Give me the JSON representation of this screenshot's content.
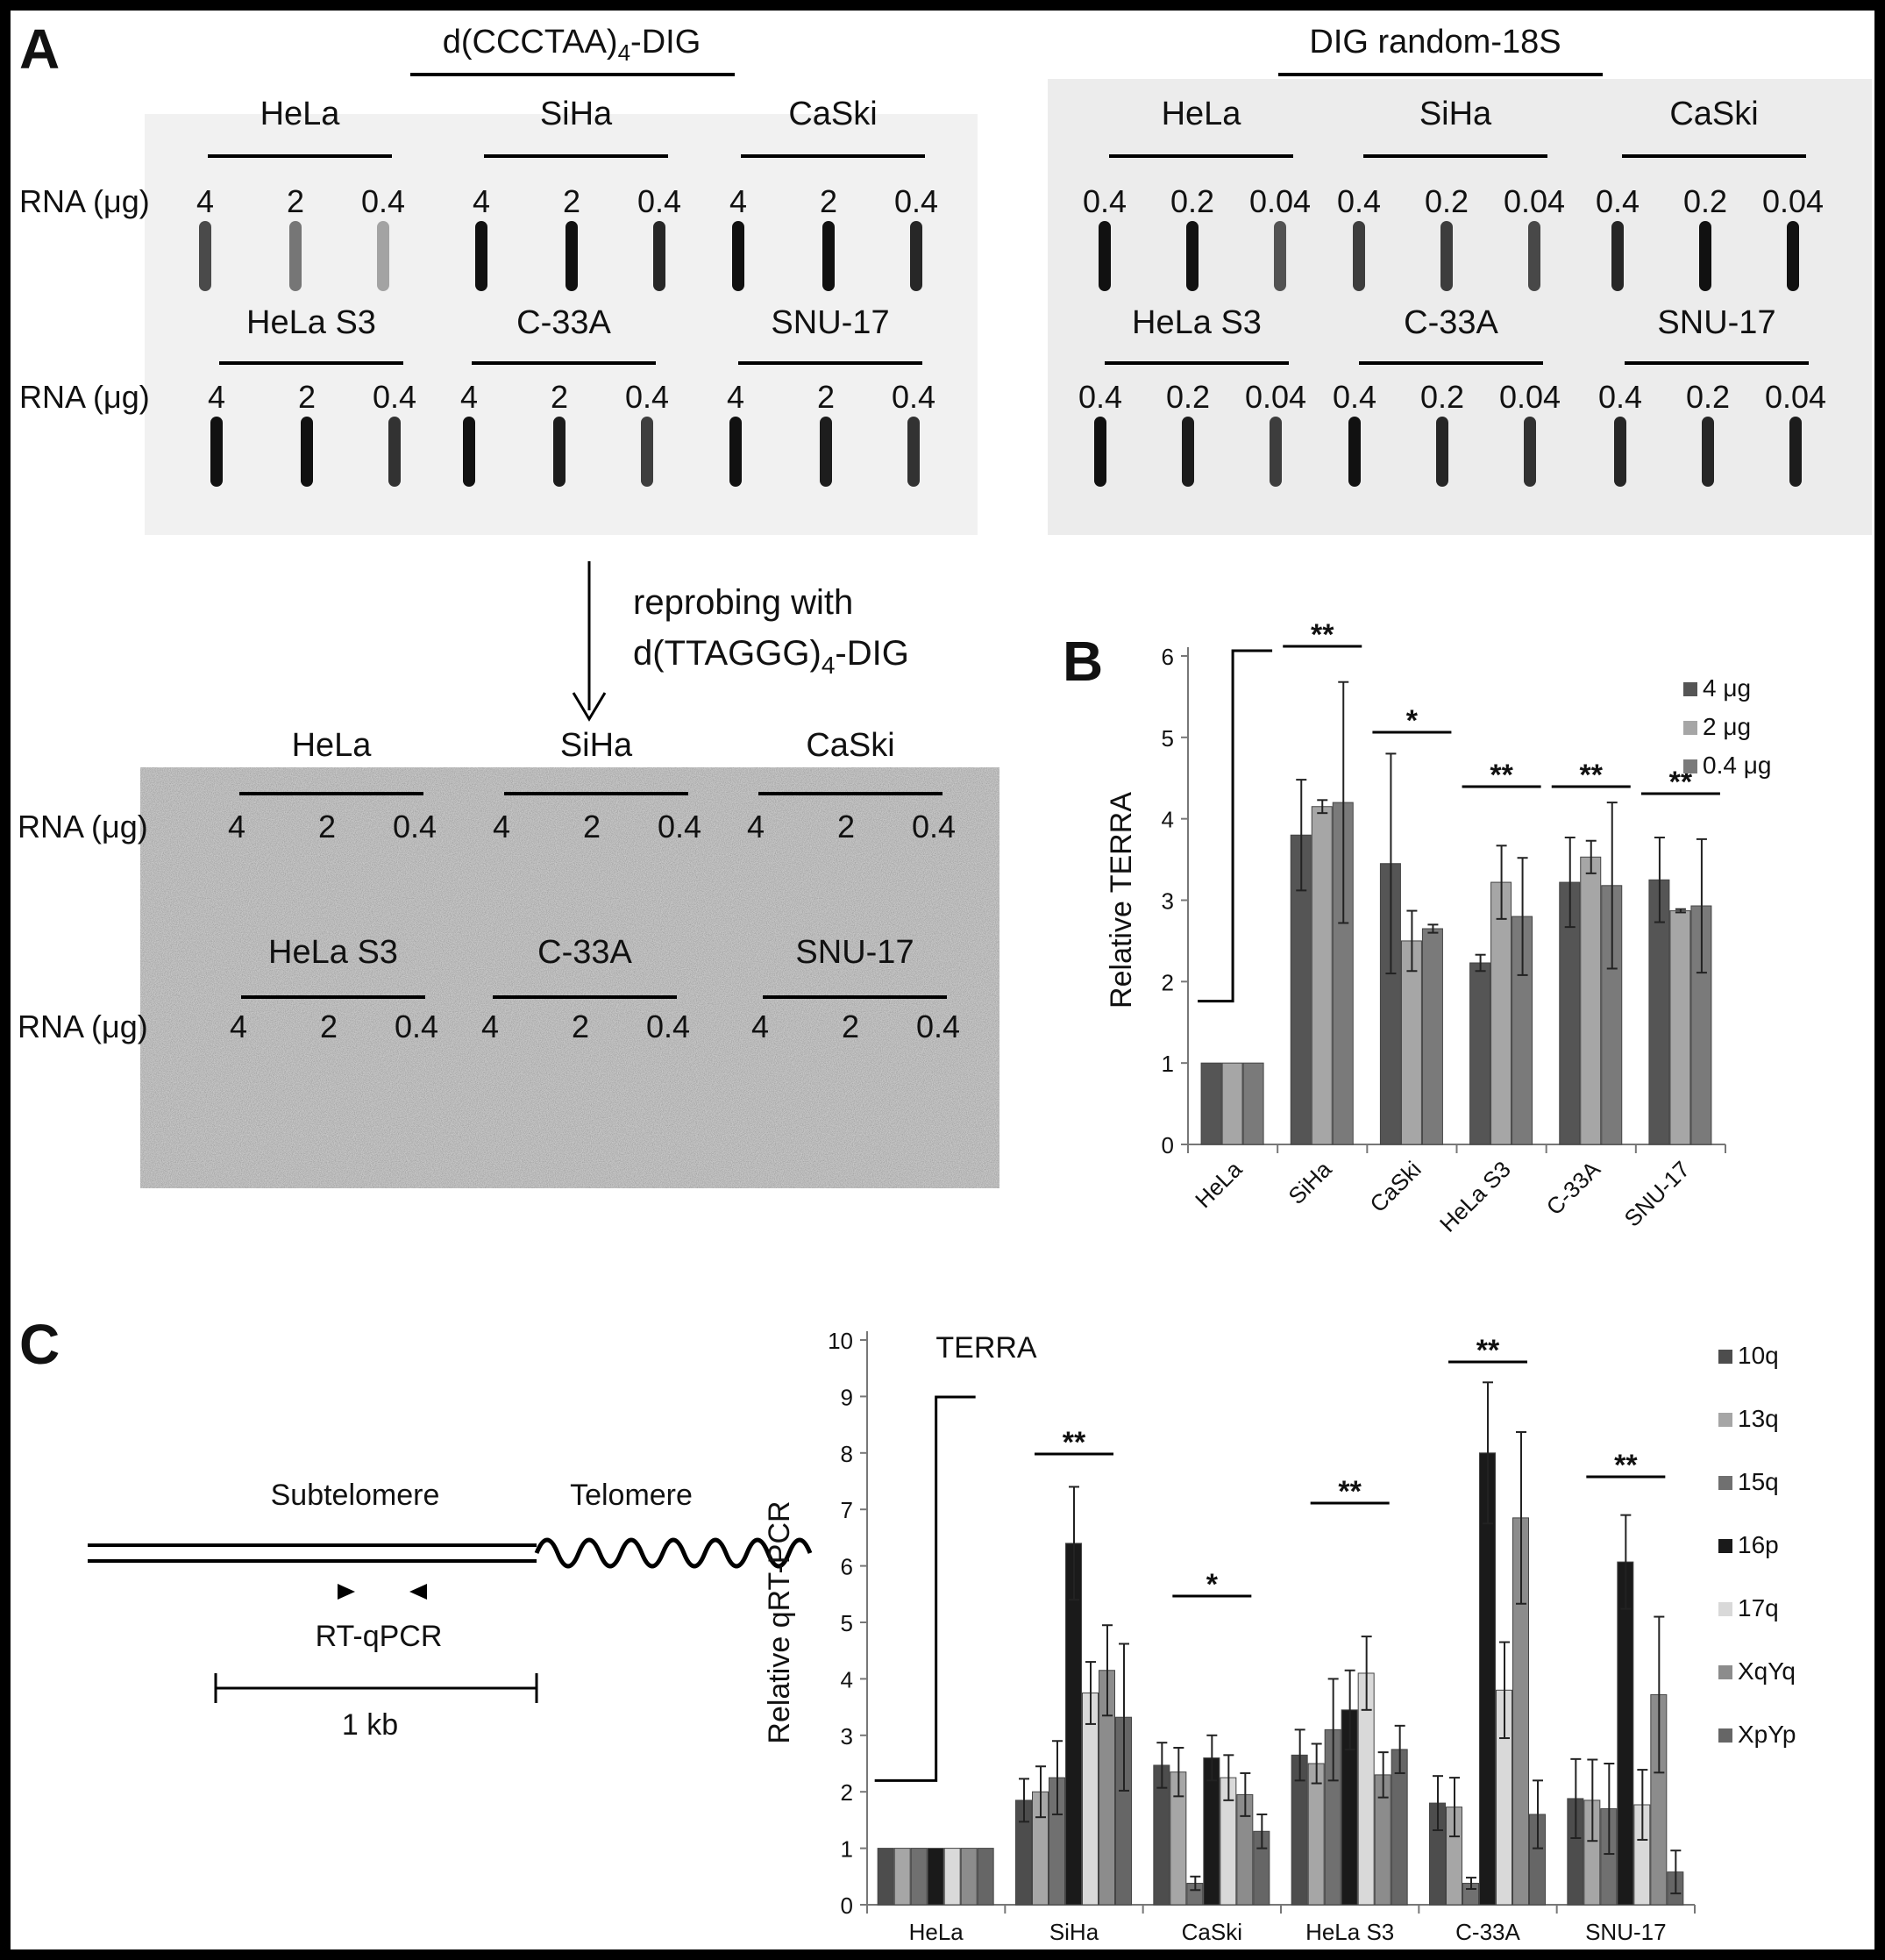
{
  "panel_a": {
    "letter": "A",
    "probe_left_prefix": "d(CCCTAA)",
    "probe_left_sub": "4",
    "probe_left_suffix": "-DIG",
    "probe_right": "DIG random-18S",
    "rna_label": "RNA (μg)",
    "groups_row1": [
      "HeLa",
      "SiHa",
      "CaSki"
    ],
    "groups_row2": [
      "HeLa S3",
      "C-33A",
      "SNU-17"
    ],
    "amounts_left": [
      "4",
      "2",
      "0.4"
    ],
    "amounts_right": [
      "0.4",
      "0.2",
      "0.04"
    ],
    "reprobe_line1": "reprobing with",
    "reprobe_line2_prefix": "d(TTAGGG)",
    "reprobe_line2_sub": "4",
    "reprobe_line2_suffix": "-DIG"
  },
  "panel_c_diagram": {
    "letter": "C",
    "subtelomere": "Subtelomere",
    "telomere": "Telomere",
    "primer_label": "RT-qPCR",
    "scale_label": "1 kb"
  },
  "chart_data": [
    {
      "type": "bar",
      "panel": "B",
      "title": "",
      "xlabel": "",
      "ylabel": "Relative TERRA",
      "ylim": [
        0,
        6
      ],
      "yticks": [
        0,
        1,
        2,
        3,
        4,
        5,
        6
      ],
      "categories": [
        "HeLa",
        "SiHa",
        "CaSki",
        "HeLa S3",
        "C-33A",
        "SNU-17"
      ],
      "legend_position": "top-right",
      "series": [
        {
          "name": "4 μg",
          "color": "#555555",
          "values": [
            1.0,
            3.8,
            3.45,
            2.23,
            3.22,
            3.25
          ],
          "errors": [
            0,
            0.68,
            1.35,
            0.1,
            0.55,
            0.52
          ]
        },
        {
          "name": "2 μg",
          "color": "#a6a6a6",
          "values": [
            1.0,
            4.15,
            2.5,
            3.22,
            3.53,
            2.87
          ],
          "errors": [
            0,
            0.08,
            0.37,
            0.45,
            0.2,
            0.02
          ]
        },
        {
          "name": "0.4 μg",
          "color": "#7a7a7a",
          "values": [
            1.0,
            4.2,
            2.65,
            2.8,
            3.18,
            2.93
          ],
          "errors": [
            0,
            1.48,
            0.05,
            0.72,
            1.02,
            0.82
          ]
        }
      ],
      "significance": [
        "",
        "**",
        "*",
        "**",
        "**",
        "**"
      ]
    },
    {
      "type": "bar",
      "panel": "C",
      "title": "TERRA",
      "xlabel": "",
      "ylabel": "Relative qRT-PCR",
      "ylim": [
        0,
        10
      ],
      "yticks": [
        0,
        1,
        2,
        3,
        4,
        5,
        6,
        7,
        8,
        9,
        10
      ],
      "categories": [
        "HeLa",
        "SiHa",
        "CaSki",
        "HeLa S3",
        "C-33A",
        "SNU-17"
      ],
      "legend_position": "right",
      "series": [
        {
          "name": "10q",
          "color": "#4d4d4d",
          "values": [
            1,
            1.85,
            2.47,
            2.65,
            1.8,
            1.88
          ],
          "errors": [
            0,
            0.38,
            0.4,
            0.45,
            0.48,
            0.7
          ]
        },
        {
          "name": "13q",
          "color": "#a6a6a6",
          "values": [
            1,
            2.0,
            2.35,
            2.5,
            1.73,
            1.85
          ],
          "errors": [
            0,
            0.45,
            0.43,
            0.35,
            0.52,
            0.72
          ]
        },
        {
          "name": "15q",
          "color": "#707070",
          "values": [
            1,
            2.25,
            0.38,
            3.1,
            0.38,
            1.7
          ],
          "errors": [
            0,
            0.65,
            0.12,
            0.9,
            0.1,
            0.8
          ]
        },
        {
          "name": "16p",
          "color": "#1a1a1a",
          "values": [
            1,
            6.4,
            2.6,
            3.45,
            8.0,
            6.07
          ],
          "errors": [
            0,
            1.0,
            0.4,
            0.7,
            1.25,
            0.83
          ]
        },
        {
          "name": "17q",
          "color": "#d9d9d9",
          "values": [
            1,
            3.75,
            2.25,
            4.1,
            3.8,
            1.77
          ],
          "errors": [
            0,
            0.55,
            0.4,
            0.65,
            0.85,
            0.62
          ]
        },
        {
          "name": "XqYq",
          "color": "#8c8c8c",
          "values": [
            1,
            4.15,
            1.95,
            2.3,
            6.85,
            3.72
          ],
          "errors": [
            0,
            0.8,
            0.38,
            0.4,
            1.52,
            1.38
          ]
        },
        {
          "name": "XpYp",
          "color": "#666666",
          "values": [
            1,
            3.32,
            1.3,
            2.75,
            1.6,
            0.58
          ],
          "errors": [
            0,
            1.3,
            0.3,
            0.42,
            0.6,
            0.38
          ]
        }
      ],
      "significance": [
        "",
        "**",
        "*",
        "**",
        "**",
        "**"
      ]
    }
  ]
}
